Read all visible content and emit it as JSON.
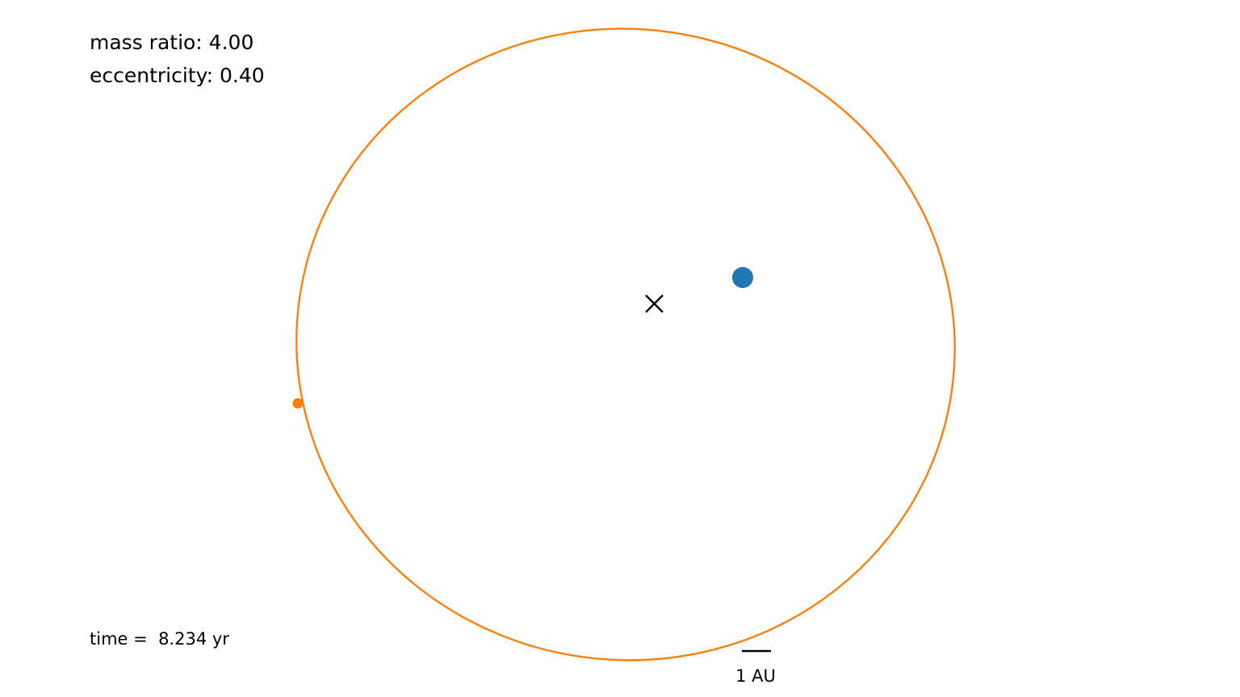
{
  "simulation": {
    "mass_ratio_label": "mass ratio: 4.00",
    "eccentricity_label": "eccentricity: 0.40",
    "time_label": "time =  8.234 yr",
    "mass_ratio": 4.0,
    "eccentricity": 0.4,
    "time_yr": 8.234
  },
  "scale_bar": {
    "label": "1 AU",
    "length_au": 1
  },
  "bodies": {
    "primary": {
      "name": "primary-star",
      "color": "#1f77b4"
    },
    "secondary": {
      "name": "secondary-star",
      "color": "#ff7f0e"
    },
    "center_of_mass": {
      "marker": "x",
      "color": "#000000"
    }
  },
  "orbit": {
    "color": "#ff7f0e"
  }
}
